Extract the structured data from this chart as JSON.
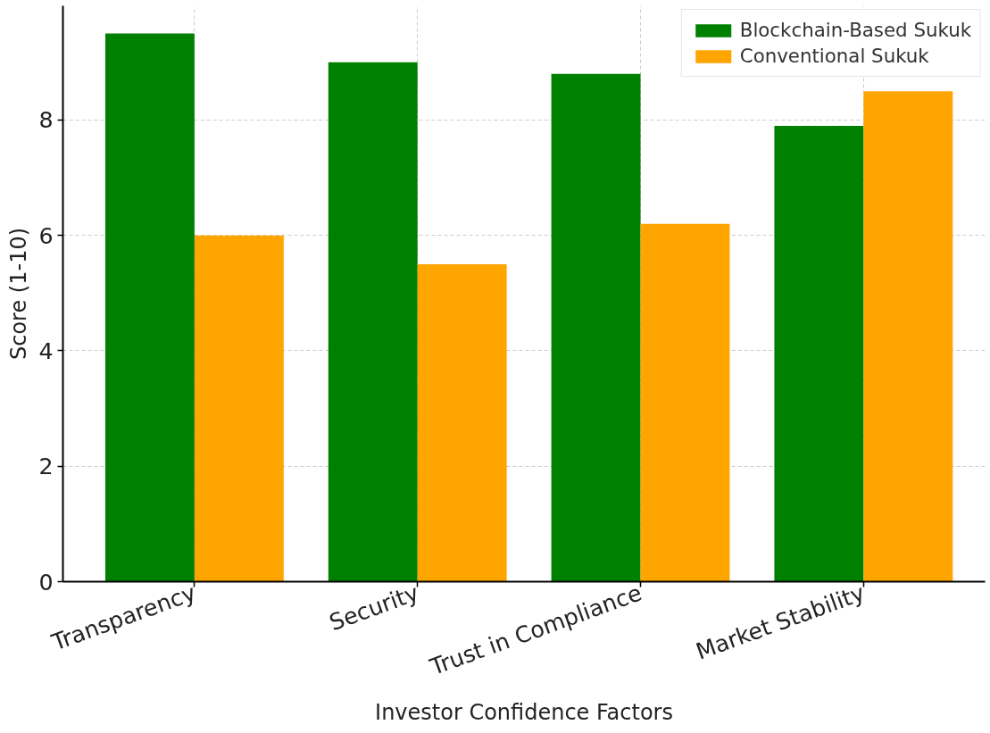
{
  "chart_data": {
    "type": "bar",
    "xlabel": "Investor Confidence Factors",
    "ylabel": "Score (1-10)",
    "categories": [
      "Transparency",
      "Security",
      "Trust in Compliance",
      "Market Stability"
    ],
    "series": [
      {
        "name": "Blockchain-Based Sukuk",
        "color": "#008000",
        "values": [
          9.5,
          9.0,
          8.8,
          7.9
        ]
      },
      {
        "name": "Conventional Sukuk",
        "color": "#ffa500",
        "values": [
          6.0,
          5.5,
          6.2,
          8.5
        ]
      }
    ],
    "ylim": [
      0,
      9.98
    ],
    "yticks": [
      0,
      2,
      4,
      6,
      8
    ],
    "grid": true,
    "legend": "top right"
  }
}
